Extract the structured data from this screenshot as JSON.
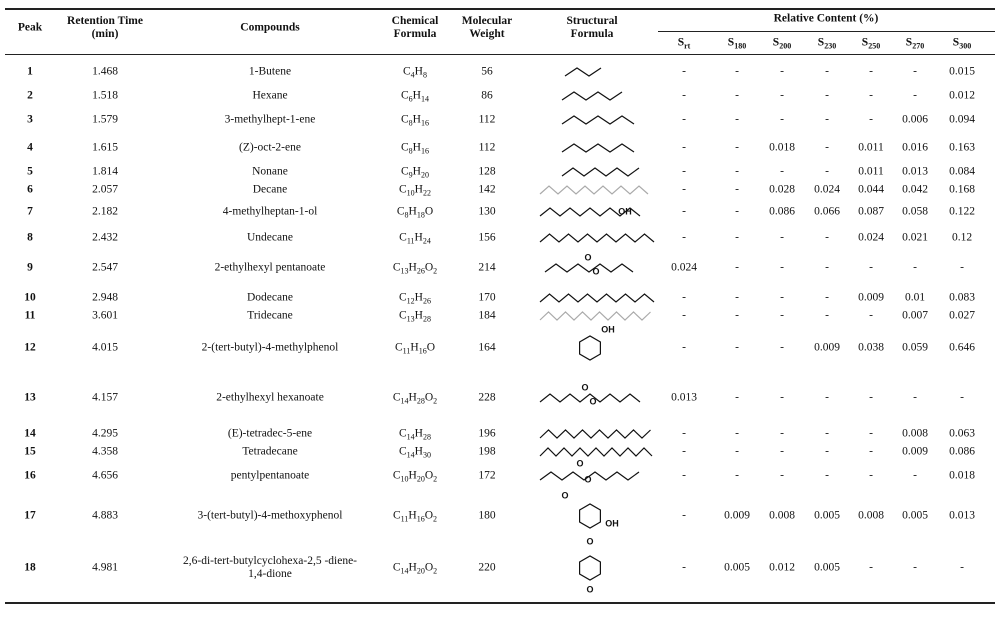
{
  "headers": {
    "peak": "Peak",
    "retention_time": "Retention Time (min)",
    "compounds": "Compounds",
    "chemical_formula": "Chemical Formula",
    "molecular_weight": "Molecular Weight",
    "structural_formula": "Structural Formula",
    "relative_content": "Relative Content (%)",
    "samples": [
      "Srt",
      "S180",
      "S200",
      "S230",
      "S250",
      "S270",
      "S300"
    ]
  },
  "table": {
    "rows": [
      {
        "peak": 1,
        "retention_time": 1.468,
        "compound": "1-Butene",
        "formula": "C4H8",
        "molecular_weight": 56,
        "relative_content": [
          "-",
          "-",
          "-",
          "-",
          "-",
          "-",
          0.015
        ]
      },
      {
        "peak": 2,
        "retention_time": 1.518,
        "compound": "Hexane",
        "formula": "C6H14",
        "molecular_weight": 86,
        "relative_content": [
          "-",
          "-",
          "-",
          "-",
          "-",
          "-",
          0.012
        ]
      },
      {
        "peak": 3,
        "retention_time": 1.579,
        "compound": "3-methylhept-1-ene",
        "formula": "C8H16",
        "molecular_weight": 112,
        "relative_content": [
          "-",
          "-",
          "-",
          "-",
          "-",
          0.006,
          0.094
        ]
      },
      {
        "peak": 4,
        "retention_time": 1.615,
        "compound": "(Z)-oct-2-ene",
        "formula": "C8H16",
        "molecular_weight": 112,
        "relative_content": [
          "-",
          "-",
          0.018,
          "-",
          0.011,
          0.016,
          0.163
        ]
      },
      {
        "peak": 5,
        "retention_time": 1.814,
        "compound": "Nonane",
        "formula": "C9H20",
        "molecular_weight": 128,
        "relative_content": [
          "-",
          "-",
          "-",
          "-",
          0.011,
          0.013,
          0.084
        ]
      },
      {
        "peak": 6,
        "retention_time": 2.057,
        "compound": "Decane",
        "formula": "C10H22",
        "molecular_weight": 142,
        "relative_content": [
          "-",
          "-",
          0.028,
          0.024,
          0.044,
          0.042,
          0.168
        ]
      },
      {
        "peak": 7,
        "retention_time": 2.182,
        "compound": "4-methylheptan-1-ol",
        "formula": "C8H18O",
        "molecular_weight": 130,
        "relative_content": [
          "-",
          "-",
          0.086,
          0.066,
          0.087,
          0.058,
          0.122
        ],
        "structure_labels": [
          "OH"
        ]
      },
      {
        "peak": 8,
        "retention_time": 2.432,
        "compound": "Undecane",
        "formula": "C11H24",
        "molecular_weight": 156,
        "relative_content": [
          "-",
          "-",
          "-",
          "-",
          0.024,
          0.021,
          0.12
        ]
      },
      {
        "peak": 9,
        "retention_time": 2.547,
        "compound": "2-ethylhexyl pentanoate",
        "formula": "C13H26O2",
        "molecular_weight": 214,
        "relative_content": [
          0.024,
          "-",
          "-",
          "-",
          "-",
          "-",
          "-"
        ],
        "structure_labels": [
          "O",
          "O"
        ]
      },
      {
        "peak": 10,
        "retention_time": 2.948,
        "compound": "Dodecane",
        "formula": "C12H26",
        "molecular_weight": 170,
        "relative_content": [
          "-",
          "-",
          "-",
          "-",
          0.009,
          0.01,
          0.083
        ]
      },
      {
        "peak": 11,
        "retention_time": 3.601,
        "compound": "Tridecane",
        "formula": "C13H28",
        "molecular_weight": 184,
        "relative_content": [
          "-",
          "-",
          "-",
          "-",
          "-",
          0.007,
          0.027
        ]
      },
      {
        "peak": 12,
        "retention_time": 4.015,
        "compound": "2-(tert-butyl)-4-methylphenol",
        "formula": "C11H16O",
        "molecular_weight": 164,
        "relative_content": [
          "-",
          "-",
          "-",
          0.009,
          0.038,
          0.059,
          0.646
        ],
        "structure_labels": [
          "OH"
        ]
      },
      {
        "peak": 13,
        "retention_time": 4.157,
        "compound": "2-ethylhexyl hexanoate",
        "formula": "C14H28O2",
        "molecular_weight": 228,
        "relative_content": [
          0.013,
          "-",
          "-",
          "-",
          "-",
          "-",
          "-"
        ],
        "structure_labels": [
          "O",
          "O"
        ]
      },
      {
        "peak": 14,
        "retention_time": 4.295,
        "compound": "(E)-tetradec-5-ene",
        "formula": "C14H28",
        "molecular_weight": 196,
        "relative_content": [
          "-",
          "-",
          "-",
          "-",
          "-",
          0.008,
          0.063
        ]
      },
      {
        "peak": 15,
        "retention_time": 4.358,
        "compound": "Tetradecane",
        "formula": "C14H30",
        "molecular_weight": 198,
        "relative_content": [
          "-",
          "-",
          "-",
          "-",
          "-",
          0.009,
          0.086
        ]
      },
      {
        "peak": 16,
        "retention_time": 4.656,
        "compound": "pentylpentanoate",
        "formula": "C10H20O2",
        "molecular_weight": 172,
        "relative_content": [
          "-",
          "-",
          "-",
          "-",
          "-",
          "-",
          0.018
        ],
        "structure_labels": [
          "O",
          "O"
        ]
      },
      {
        "peak": 17,
        "retention_time": 4.883,
        "compound": "3-(tert-butyl)-4-methoxyphenol",
        "formula": "C11H16O2",
        "molecular_weight": 180,
        "relative_content": [
          "-",
          0.009,
          0.008,
          0.005,
          0.008,
          0.005,
          0.013
        ],
        "structure_labels": [
          "O",
          "OH"
        ]
      },
      {
        "peak": 18,
        "retention_time": 4.981,
        "compound": "2,6-di-tert-butylcyclohexa-2,5 -diene-1,4-dione",
        "formula": "C14H20O2",
        "molecular_weight": 220,
        "relative_content": [
          "-",
          0.005,
          0.012,
          0.005,
          "-",
          "-",
          "-"
        ],
        "structure_labels": [
          "O",
          "O"
        ]
      }
    ]
  }
}
